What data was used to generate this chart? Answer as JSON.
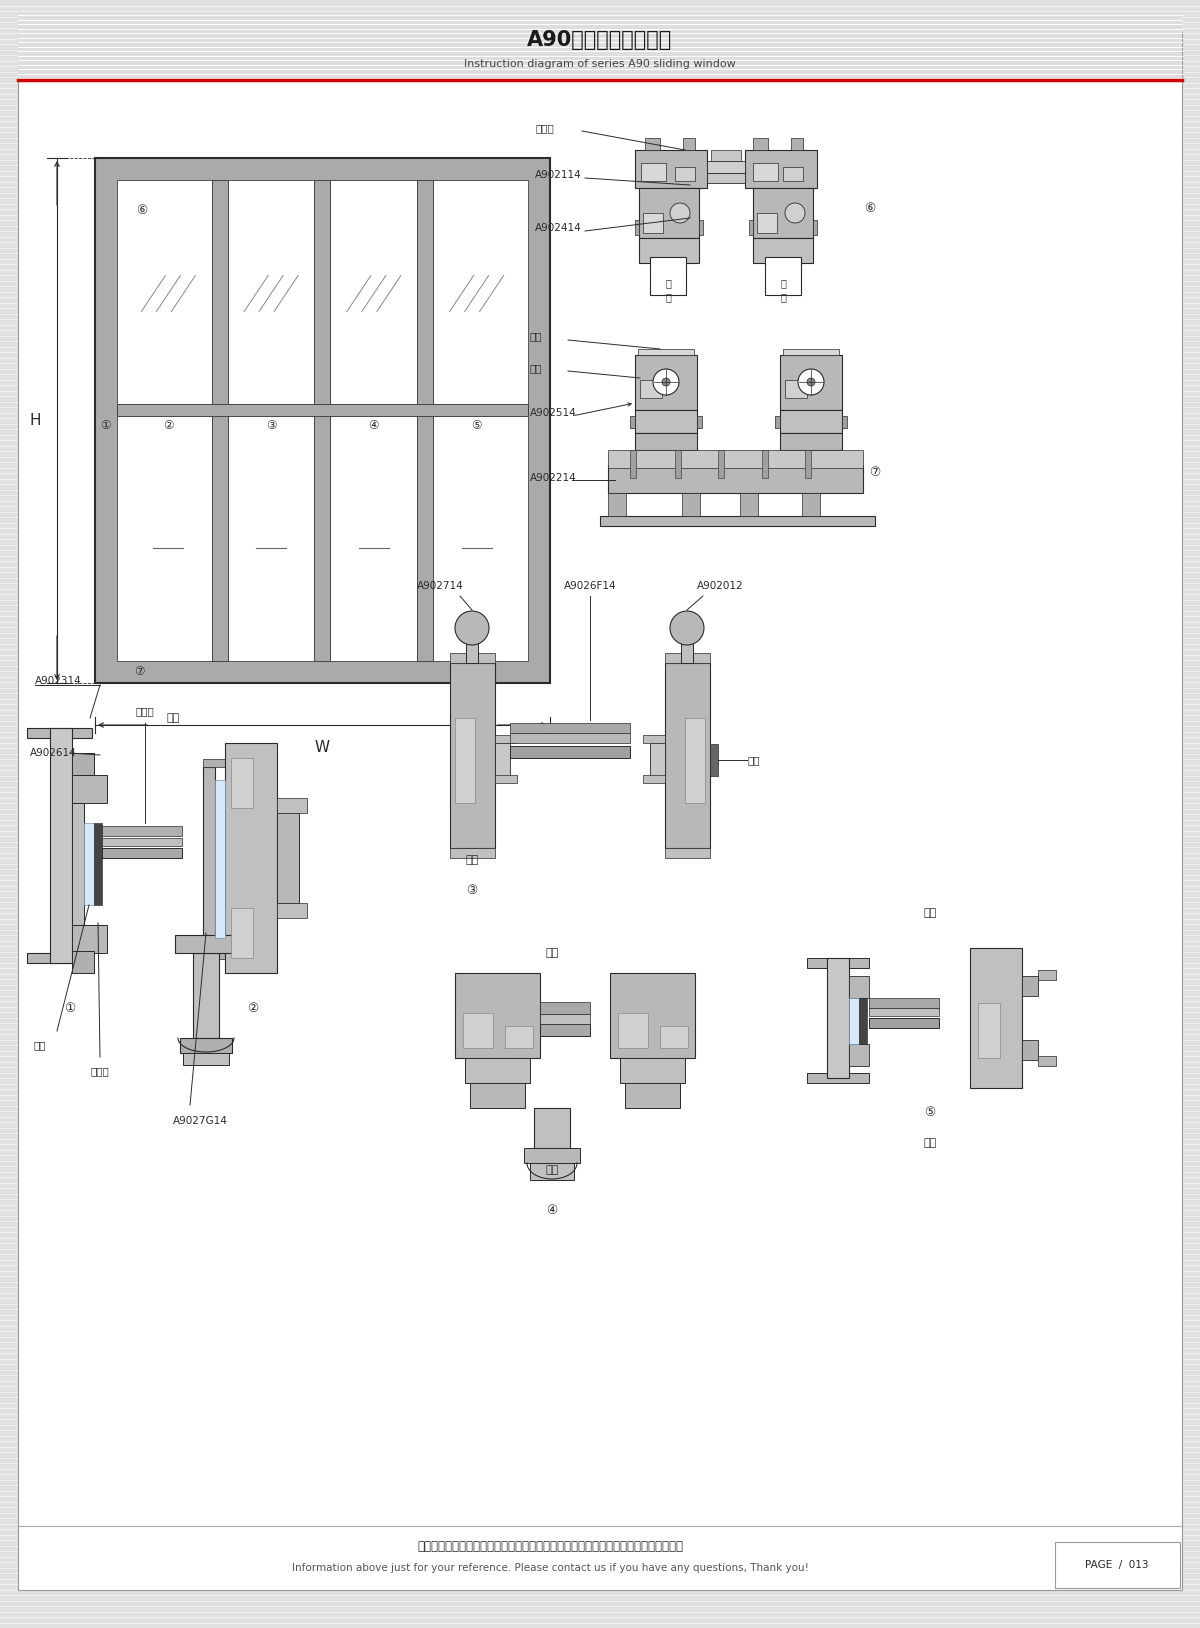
{
  "title_cn": "A90系列推拉窗结构图",
  "title_en": "Instruction diagram of series A90 sliding window",
  "footer_cn": "图中所示型材截面、装配、编号、尺寸及重量仅供参考。如有疑问，请向本公司查询。",
  "footer_en": "Information above just for your reference. Please contact us if you have any questions, Thank you!",
  "page": "PAGE  /  013",
  "bg_stripe_color": "#e8e8e8",
  "paper_color": "#ffffff",
  "line_color": "#3a3a3a",
  "dark_color": "#2a2a2a",
  "frame_fill": "#b0b0b0",
  "frame_fill2": "#c8c8c8",
  "red_line_color": "#cc0000",
  "circle_labels": [
    "①",
    "②",
    "③",
    "④",
    "⑤",
    "⑥",
    "⑦"
  ]
}
